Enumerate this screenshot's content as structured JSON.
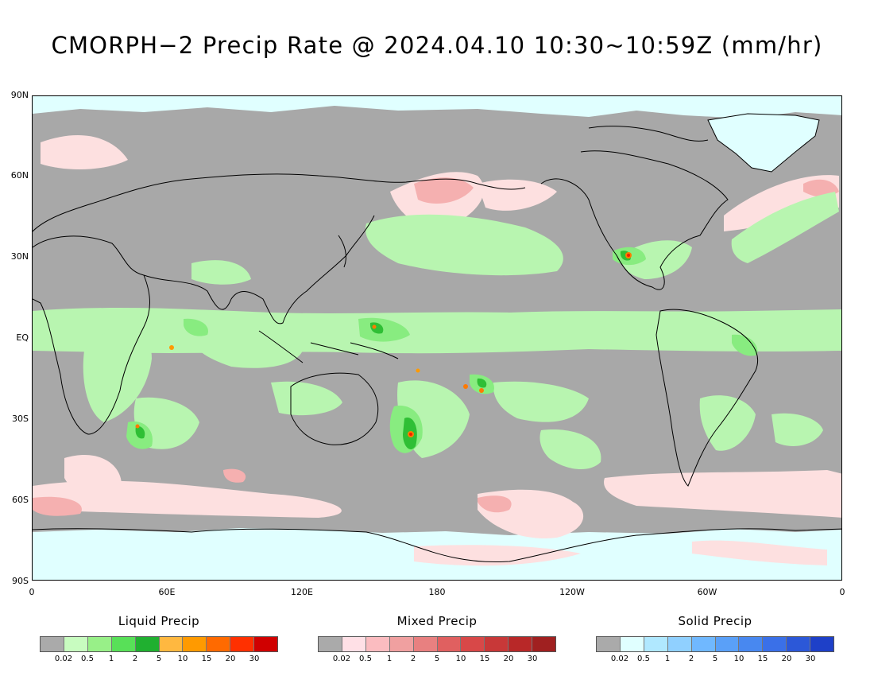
{
  "title": "CMORPH−2 Precip Rate @ 2024.04.10 10:30~10:59Z (mm/hr)",
  "map": {
    "lat_labels": [
      "90N",
      "60N",
      "30N",
      "EQ",
      "30S",
      "60S",
      "90S"
    ],
    "lon_labels": [
      "0",
      "60E",
      "120E",
      "180",
      "120W",
      "60W",
      "0"
    ],
    "colors": {
      "background": "#a8a8a8",
      "liquid_light": "#b8f5b0",
      "liquid_mid": "#88ec80",
      "liquid_heavy": "#2fbf35",
      "mixed_light": "#fde0e0",
      "mixed_mid": "#f5b0b0",
      "snow": "#e0ffff",
      "intense": "#ff7a00",
      "extreme": "#ee2200",
      "coast": "#000000"
    }
  },
  "legends": [
    {
      "title": "Liquid Precip",
      "ticks": [
        "0.02",
        "0.5",
        "1",
        "2",
        "5",
        "10",
        "15",
        "20",
        "30"
      ],
      "colors": [
        "#aaaaaa",
        "#c8fcc0",
        "#98f088",
        "#58e058",
        "#20b030",
        "#ffb840",
        "#ff9a00",
        "#ff6a00",
        "#ff3000",
        "#d00000"
      ]
    },
    {
      "title": "Mixed Precip",
      "ticks": [
        "0.02",
        "0.5",
        "1",
        "2",
        "5",
        "10",
        "15",
        "20",
        "30"
      ],
      "colors": [
        "#aaaaaa",
        "#ffe0e6",
        "#fbbcc0",
        "#f0a0a0",
        "#e88080",
        "#e06060",
        "#d84848",
        "#c83838",
        "#b82828",
        "#a02020"
      ]
    },
    {
      "title": "Solid Precip",
      "ticks": [
        "0.02",
        "0.5",
        "1",
        "2",
        "5",
        "10",
        "15",
        "20",
        "30"
      ],
      "colors": [
        "#aaaaaa",
        "#e0ffff",
        "#b0e8ff",
        "#90d0ff",
        "#70b8ff",
        "#5aa0f8",
        "#4888f0",
        "#3a70e8",
        "#2c58d8",
        "#1e40c8"
      ]
    }
  ]
}
